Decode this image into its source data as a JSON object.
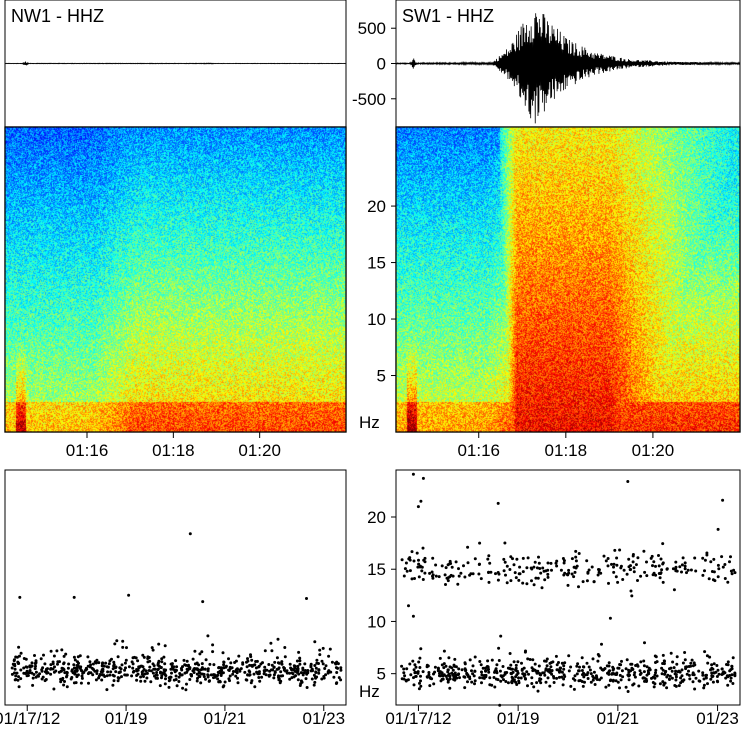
{
  "chart_data": [
    {
      "type": "line",
      "panel": "waveform-left",
      "title": "NW1 - HHZ",
      "xlabel": "",
      "ylabel": "",
      "ylim": [
        -900,
        900
      ],
      "series": [
        {
          "values": [
            0,
            5,
            -5,
            40,
            -40,
            3,
            -3,
            0,
            4,
            -4,
            0,
            6,
            -6,
            0
          ]
        }
      ]
    },
    {
      "type": "line",
      "panel": "waveform-right",
      "title": "SW1 - HHZ",
      "xlabel": "",
      "ylabel": "",
      "ylim": [
        -900,
        900
      ],
      "y_ticks": [
        "500",
        "0",
        "-500"
      ],
      "y_tick_values": [
        500,
        0,
        -500
      ],
      "envelope": {
        "t": [
          0,
          0.04,
          0.05,
          0.06,
          0.28,
          0.33,
          0.38,
          0.4,
          0.44,
          0.5,
          0.58,
          0.68,
          0.8,
          1.0
        ],
        "amp": [
          8,
          8,
          90,
          10,
          15,
          250,
          700,
          900,
          650,
          350,
          160,
          60,
          25,
          12
        ]
      }
    },
    {
      "type": "heatmap",
      "panel": "spectrogram-left",
      "xlabel": "",
      "ylabel": "",
      "x_ticks": [
        "01:16",
        "01:18",
        "01:20"
      ],
      "x_tick_values": [
        16,
        18,
        20
      ],
      "xlim": [
        14.1,
        22.0
      ],
      "ylim": [
        0,
        27
      ]
    },
    {
      "type": "heatmap",
      "panel": "spectrogram-right",
      "xlabel": "",
      "ylabel": "Hz",
      "x_ticks": [
        "01:16",
        "01:18",
        "01:20"
      ],
      "x_tick_values": [
        16,
        18,
        20
      ],
      "y_ticks": [
        "20",
        "15",
        "10",
        "5"
      ],
      "y_tick_values": [
        20,
        15,
        10,
        5
      ],
      "xlim": [
        14.1,
        22.0
      ],
      "ylim": [
        0,
        27
      ]
    },
    {
      "type": "scatter",
      "panel": "scatter-left",
      "xlabel": "",
      "ylabel": "",
      "x_ticks": [
        "01/17/12",
        "01/19",
        "01/21",
        "01/23"
      ],
      "x_tick_values": [
        0.45,
        2.45,
        4.45,
        6.45
      ],
      "xlim": [
        0,
        6.9
      ],
      "ylim": [
        2,
        24.5
      ],
      "clusters": [
        {
          "center": 5.2,
          "spread": 0.9,
          "count": 700
        }
      ],
      "outliers": [
        {
          "x": 0.3,
          "y": 12.3
        },
        {
          "x": 1.4,
          "y": 12.3
        },
        {
          "x": 2.5,
          "y": 12.5
        },
        {
          "x": 3.75,
          "y": 18.4
        },
        {
          "x": 4.0,
          "y": 11.9
        },
        {
          "x": 6.1,
          "y": 12.2
        }
      ]
    },
    {
      "type": "scatter",
      "panel": "scatter-right",
      "xlabel": "",
      "ylabel": "Hz",
      "x_ticks": [
        "01/17/12",
        "01/19",
        "01/21",
        "01/23"
      ],
      "x_tick_values": [
        0.45,
        2.45,
        4.45,
        6.45
      ],
      "y_ticks": [
        "20",
        "15",
        "10",
        "5"
      ],
      "y_tick_values": [
        20,
        15,
        10,
        5
      ],
      "xlim": [
        0,
        6.9
      ],
      "ylim": [
        2,
        24.5
      ],
      "clusters": [
        {
          "center": 5.0,
          "spread": 0.9,
          "count": 600
        },
        {
          "center": 15.0,
          "spread": 1.1,
          "count": 280
        }
      ],
      "outliers": [
        {
          "x": 0.35,
          "y": 24.1
        },
        {
          "x": 0.55,
          "y": 23.7
        },
        {
          "x": 0.5,
          "y": 21.5
        },
        {
          "x": 0.45,
          "y": 21.0
        },
        {
          "x": 2.05,
          "y": 21.3
        },
        {
          "x": 4.65,
          "y": 23.4
        },
        {
          "x": 6.55,
          "y": 21.6
        },
        {
          "x": 0.25,
          "y": 11.5
        },
        {
          "x": 0.35,
          "y": 10.5
        },
        {
          "x": 4.3,
          "y": 10.3
        },
        {
          "x": 2.1,
          "y": 8.6
        }
      ]
    }
  ]
}
